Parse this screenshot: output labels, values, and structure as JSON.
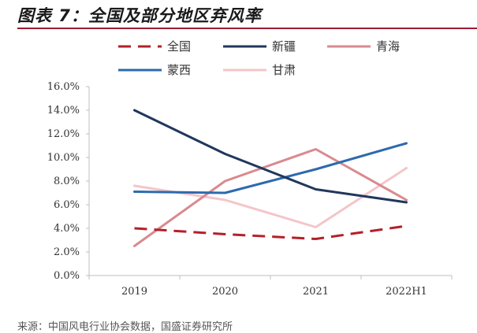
{
  "header": {
    "title": "图表 7：全国及部分地区弃风率"
  },
  "source_text": "来源：中国风电行业协会数据，国盛证券研究所",
  "chart_data": {
    "type": "line",
    "title": "图表 7：全国及部分地区弃风率",
    "categories": [
      "2019",
      "2020",
      "2021",
      "2022H1"
    ],
    "y_ticks": [
      "0.0%",
      "2.0%",
      "4.0%",
      "6.0%",
      "8.0%",
      "10.0%",
      "12.0%",
      "14.0%",
      "16.0%"
    ],
    "ylim": [
      0,
      16
    ],
    "grid": false,
    "legend_position": "top",
    "series": [
      {
        "name": "全国",
        "values": [
          4.0,
          3.5,
          3.1,
          4.2
        ],
        "color": "#b42029",
        "dash": true
      },
      {
        "name": "新疆",
        "values": [
          14.0,
          10.3,
          7.3,
          6.2
        ],
        "color": "#22375c",
        "dash": false
      },
      {
        "name": "青海",
        "values": [
          2.5,
          8.0,
          10.7,
          6.4
        ],
        "color": "#d98a8f",
        "dash": false
      },
      {
        "name": "蒙西",
        "values": [
          7.1,
          7.0,
          9.0,
          11.2
        ],
        "color": "#2d6aad",
        "dash": false
      },
      {
        "name": "甘肃",
        "values": [
          7.6,
          6.4,
          4.1,
          9.1
        ],
        "color": "#f4c5c9",
        "dash": false
      }
    ]
  }
}
